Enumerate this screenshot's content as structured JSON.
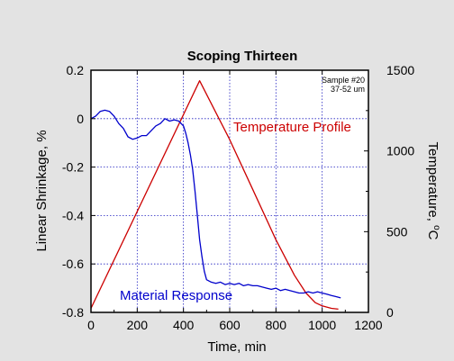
{
  "chart_data": {
    "type": "line",
    "title": "Scoping Thirteen",
    "xlabel": "Time, min",
    "ylabel_left": "Linear Shrinkage, %",
    "ylabel_right": "Temperature, ",
    "ylabel_right_unit_sup": "o",
    "ylabel_right_unit": "C",
    "xlim": [
      0,
      1200
    ],
    "ylim_left": [
      -0.8,
      0.2
    ],
    "ylim_right": [
      0,
      1500
    ],
    "x_ticks": [
      0,
      200,
      400,
      600,
      800,
      1000,
      1200
    ],
    "y_left_ticks": [
      0.2,
      0,
      -0.2,
      -0.4,
      -0.6,
      -0.8
    ],
    "y_right_ticks": [
      1500,
      1000,
      500,
      0
    ],
    "grid": true,
    "sample_note": [
      "Sample #20",
      "37-52 um"
    ],
    "annotations": [
      {
        "text": "Temperature Profile",
        "color": "#cc0000"
      },
      {
        "text": "Material Response",
        "color": "#0000cc"
      }
    ],
    "series": [
      {
        "color": "#cc0000",
        "axis": "right",
        "x": [
          0,
          470,
          600,
          700,
          800,
          880,
          930,
          970,
          1000,
          1040,
          1070
        ],
        "y": [
          25,
          1435,
          1070,
          760,
          450,
          230,
          120,
          60,
          40,
          25,
          20
        ]
      },
      {
        "color": "#0000cc",
        "axis": "left",
        "x": [
          0,
          20,
          40,
          60,
          80,
          100,
          120,
          140,
          160,
          180,
          200,
          220,
          240,
          260,
          280,
          300,
          320,
          340,
          360,
          380,
          400,
          410,
          420,
          430,
          440,
          450,
          460,
          470,
          480,
          490,
          500,
          520,
          540,
          560,
          580,
          600,
          620,
          640,
          660,
          680,
          700,
          720,
          740,
          760,
          780,
          800,
          820,
          840,
          860,
          880,
          900,
          920,
          940,
          960,
          980,
          1000,
          1020,
          1040,
          1060,
          1080
        ],
        "y": [
          0.0,
          0.01,
          0.03,
          0.035,
          0.03,
          0.01,
          -0.02,
          -0.04,
          -0.075,
          -0.085,
          -0.08,
          -0.07,
          -0.07,
          -0.05,
          -0.03,
          -0.02,
          0.0,
          -0.01,
          -0.005,
          -0.01,
          -0.03,
          -0.06,
          -0.1,
          -0.15,
          -0.21,
          -0.3,
          -0.4,
          -0.5,
          -0.57,
          -0.63,
          -0.665,
          -0.675,
          -0.68,
          -0.675,
          -0.685,
          -0.68,
          -0.685,
          -0.68,
          -0.69,
          -0.685,
          -0.69,
          -0.69,
          -0.695,
          -0.7,
          -0.705,
          -0.7,
          -0.71,
          -0.705,
          -0.71,
          -0.715,
          -0.72,
          -0.72,
          -0.715,
          -0.72,
          -0.715,
          -0.72,
          -0.725,
          -0.73,
          -0.735,
          -0.74
        ]
      }
    ]
  }
}
